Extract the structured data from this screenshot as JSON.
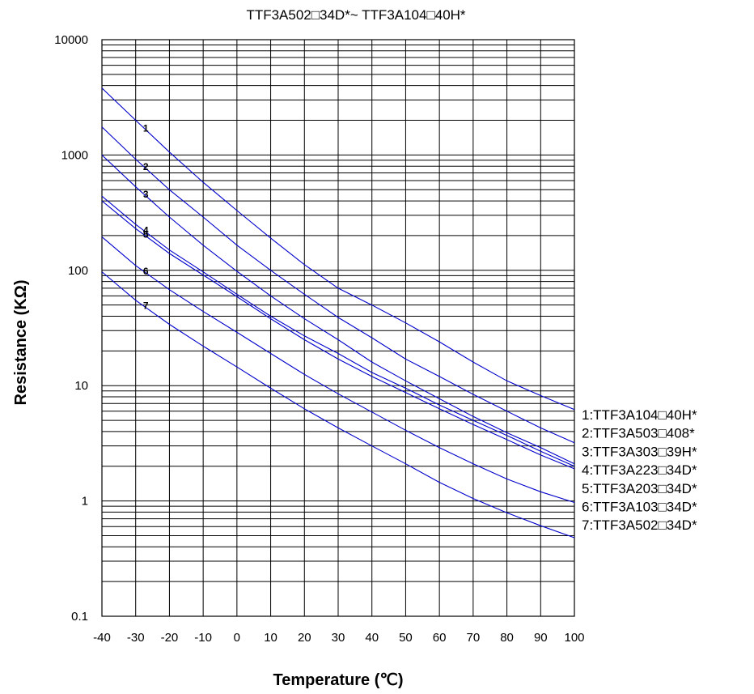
{
  "chart_data": {
    "type": "line",
    "title": "TTF3A502□34D*~ TTF3A104□40H*",
    "xlabel": "Temperature (℃)",
    "ylabel": "Resistance (KΩ)",
    "xlim": [
      -40,
      100
    ],
    "ylim": [
      0.1,
      10000
    ],
    "yscale": "log",
    "x_ticks": [
      "-40",
      "-30",
      "-20",
      "-10",
      "0",
      "10",
      "20",
      "30",
      "40",
      "50",
      "60",
      "70",
      "80",
      "90",
      "100"
    ],
    "y_ticks": [
      "10000",
      "1000",
      "100",
      "10",
      "1",
      "0.1"
    ],
    "grid": true,
    "line_color": "#0000cc",
    "x": [
      -40,
      -30,
      -20,
      -10,
      0,
      10,
      20,
      30,
      40,
      50,
      60,
      70,
      80,
      90,
      100
    ],
    "series": [
      {
        "name": "1:TTF3A104□40H*",
        "number": "1",
        "values": [
          3800,
          2000,
          1060,
          580,
          330,
          190,
          112,
          70,
          50,
          35,
          24,
          16,
          11,
          8.2,
          6.2
        ]
      },
      {
        "name": "2:TTF3A503□408*",
        "number": "2",
        "values": [
          1750,
          920,
          500,
          290,
          165,
          100,
          62,
          39,
          26,
          17,
          12,
          8.4,
          6,
          4.3,
          3.2
        ]
      },
      {
        "name": "3:TTF3A303□39H*",
        "number": "3",
        "values": [
          1000,
          530,
          290,
          165,
          98,
          60,
          38,
          25,
          16,
          11,
          7.7,
          5.4,
          3.9,
          2.9,
          2.1
        ]
      },
      {
        "name": "4:TTF3A223□34D*",
        "number": "4",
        "values": [
          440,
          250,
          150,
          97,
          62,
          40,
          27,
          19,
          13,
          9.5,
          6.8,
          5,
          3.7,
          2.7,
          2
        ]
      },
      {
        "name": "5:TTF3A203□34D*",
        "number": "5",
        "values": [
          400,
          230,
          140,
          91,
          59,
          38,
          25,
          17,
          12,
          8.7,
          6.3,
          4.6,
          3.4,
          2.5,
          1.9
        ]
      },
      {
        "name": "6:TTF3A103□34D*",
        "number": "6",
        "values": [
          195,
          110,
          68,
          44,
          29,
          19,
          12.5,
          8.5,
          5.9,
          4.1,
          2.9,
          2.1,
          1.55,
          1.2,
          0.97
        ]
      },
      {
        "name": "7:TTF3A502□34D*",
        "number": "7",
        "values": [
          97,
          55,
          34,
          22,
          14.5,
          9.5,
          6.3,
          4.3,
          3,
          2.1,
          1.45,
          1.05,
          0.79,
          0.61,
          0.48
        ]
      }
    ]
  }
}
